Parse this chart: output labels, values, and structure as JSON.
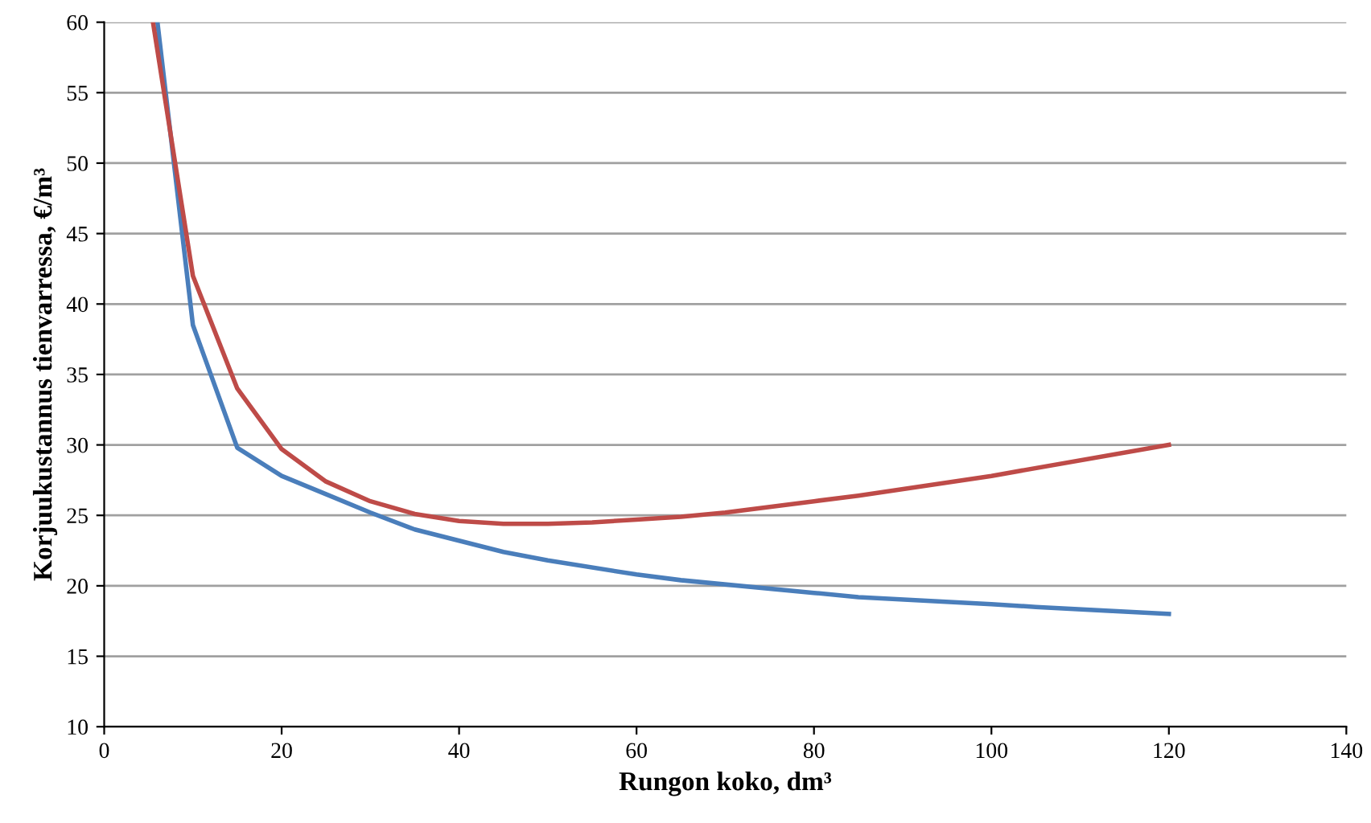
{
  "chart_data": {
    "type": "line",
    "xlabel": "Rungon koko, dm³",
    "ylabel": "Korjuukustannus tienvarressa, €/m³",
    "xlim": [
      0,
      140
    ],
    "xticks": [
      0,
      20,
      40,
      60,
      80,
      100,
      120,
      140
    ],
    "ylim": [
      10,
      60
    ],
    "yticks": [
      10,
      15,
      20,
      25,
      30,
      35,
      40,
      45,
      50,
      55,
      60
    ],
    "grid": "y",
    "legend": false,
    "marker": "none",
    "line_style": "solid",
    "series": [
      {
        "color": "#4a7ebb",
        "x": [
          6,
          10,
          15,
          20,
          25,
          30,
          35,
          40,
          45,
          50,
          60,
          65,
          80,
          85,
          100,
          105,
          120
        ],
        "values": [
          60,
          38.5,
          29.8,
          27.8,
          26.5,
          25.2,
          24,
          23.2,
          22.4,
          21.8,
          20.8,
          20.4,
          19.5,
          19.2,
          18.7,
          18.5,
          18
        ]
      },
      {
        "color": "#be4b48",
        "x": [
          5.5,
          10,
          15,
          20,
          25,
          30,
          35,
          40,
          45,
          50,
          55,
          60,
          65,
          70,
          80,
          85,
          100,
          120
        ],
        "values": [
          60,
          42,
          34,
          29.7,
          27.4,
          26,
          25.1,
          24.6,
          24.4,
          24.4,
          24.5,
          24.7,
          24.9,
          25.2,
          26,
          26.4,
          27.8,
          30
        ]
      }
    ]
  }
}
